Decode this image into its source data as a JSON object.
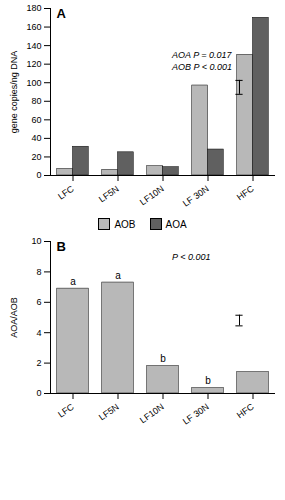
{
  "chart_data": [
    {
      "type": "bar",
      "title": "A",
      "categories": [
        "LFC",
        "LF5N",
        "LF10N",
        "LF 30N",
        "HFC"
      ],
      "series": [
        {
          "name": "AOB",
          "color": "#b8b8b8",
          "values": [
            7,
            6,
            10,
            97,
            130
          ]
        },
        {
          "name": "AOA",
          "color": "#606060",
          "values": [
            31,
            25,
            9,
            28,
            170
          ]
        }
      ],
      "ylabel": "gene copies/ng DNA",
      "ylim": [
        0,
        180
      ],
      "yticks": [
        0,
        20,
        40,
        60,
        80,
        100,
        120,
        140,
        160,
        180
      ],
      "annotations": [
        "AOA P = 0.017",
        "AOB P < 0.001"
      ],
      "lsd_bar": {
        "center": 95,
        "span": 15
      },
      "legend": "bottom",
      "grid": false
    },
    {
      "type": "bar",
      "title": "B",
      "categories": [
        "LFC",
        "LF5N",
        "LF10N",
        "LF 30N",
        "HFC"
      ],
      "values": [
        6.9,
        7.3,
        1.8,
        0.35,
        1.4
      ],
      "color": "#b8b8b8",
      "letters": [
        "a",
        "a",
        "b",
        "b",
        null
      ],
      "ylabel": "AOA/AOB",
      "ylim": [
        0,
        10
      ],
      "yticks": [
        0,
        2,
        4,
        6,
        8,
        10
      ],
      "annotations": [
        "P < 0.001"
      ],
      "lsd_bar": {
        "center": 4.8,
        "span": 0.7
      },
      "grid": false
    }
  ]
}
